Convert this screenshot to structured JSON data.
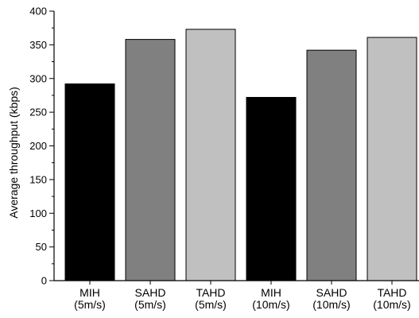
{
  "chart_data": {
    "type": "bar",
    "title": "",
    "ylabel": "Average throughput (kbps)",
    "xlabel": "",
    "ylim": [
      0,
      400
    ],
    "yticks": [
      0,
      50,
      100,
      150,
      200,
      250,
      300,
      350,
      400
    ],
    "grid": false,
    "categories": [
      [
        "MIH",
        "(5m/s)"
      ],
      [
        "SAHD",
        "(5m/s)"
      ],
      [
        "TAHD",
        "(5m/s)"
      ],
      [
        "MIH",
        "(10m/s)"
      ],
      [
        "SAHD",
        "(10m/s)"
      ],
      [
        "TAHD",
        "(10m/s)"
      ]
    ],
    "values": [
      292,
      358,
      373,
      272,
      342,
      361
    ],
    "bar_colors": [
      "#000000",
      "#808080",
      "#c0c0c0",
      "#000000",
      "#808080",
      "#c0c0c0"
    ]
  }
}
